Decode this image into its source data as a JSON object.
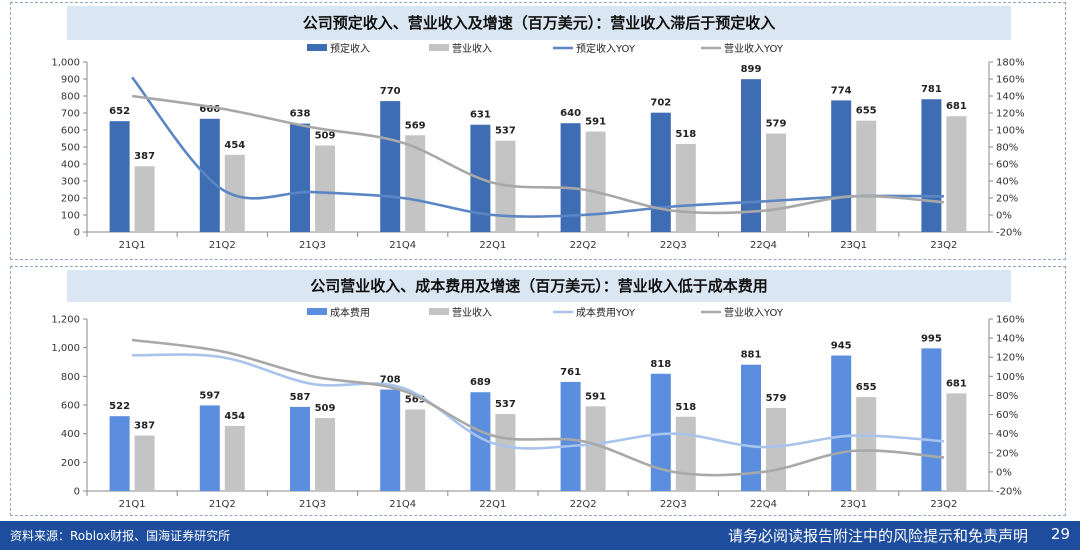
{
  "chart_data": [
    {
      "type": "bar",
      "title": "公司预定收入、营业收入及增速（百万美元）：营业收入滞后于预定收入",
      "categories": [
        "21Q1",
        "21Q2",
        "21Q3",
        "21Q4",
        "22Q1",
        "22Q2",
        "22Q3",
        "22Q4",
        "23Q1",
        "23Q2"
      ],
      "series": [
        {
          "name": "预定收入",
          "kind": "bar",
          "axis": "left",
          "color": "#3f6db3",
          "values": [
            652,
            666,
            638,
            770,
            631,
            640,
            702,
            899,
            774,
            781
          ]
        },
        {
          "name": "营业收入",
          "kind": "bar",
          "axis": "left",
          "color": "#c4c4c4",
          "values": [
            387,
            454,
            509,
            569,
            537,
            591,
            518,
            579,
            655,
            681
          ]
        },
        {
          "name": "预定收入YOY",
          "kind": "line",
          "axis": "right",
          "color": "#5b86c4",
          "values": [
            162,
            30,
            27,
            20,
            0,
            0,
            10,
            16,
            22,
            22
          ]
        },
        {
          "name": "营业收入YOY",
          "kind": "line",
          "axis": "right",
          "color": "#a8a8a8",
          "values": [
            140,
            125,
            103,
            85,
            38,
            30,
            5,
            5,
            22,
            15
          ]
        }
      ],
      "ylim": [
        0,
        1000
      ],
      "yticks": [
        "0",
        "100",
        "200",
        "300",
        "400",
        "500",
        "600",
        "700",
        "800",
        "900",
        "1,000"
      ],
      "y2lim": [
        -20,
        180
      ],
      "y2ticks": [
        "-20%",
        "0%",
        "20%",
        "40%",
        "60%",
        "80%",
        "100%",
        "120%",
        "140%",
        "160%",
        "180%"
      ],
      "legend": "top"
    },
    {
      "type": "bar",
      "title": "公司营业收入、成本费用及增速（百万美元）：营业收入低于成本费用",
      "categories": [
        "21Q1",
        "21Q2",
        "21Q3",
        "21Q4",
        "22Q1",
        "22Q2",
        "22Q3",
        "22Q4",
        "23Q1",
        "23Q2"
      ],
      "series": [
        {
          "name": "成本费用",
          "kind": "bar",
          "axis": "left",
          "color": "#5b8ede",
          "values": [
            522,
            597,
            587,
            708,
            689,
            761,
            818,
            881,
            945,
            995
          ]
        },
        {
          "name": "营业收入",
          "kind": "bar",
          "axis": "left",
          "color": "#c4c4c4",
          "values": [
            387,
            454,
            509,
            569,
            537,
            591,
            518,
            579,
            655,
            681
          ]
        },
        {
          "name": "成本费用YOY",
          "kind": "line",
          "axis": "right",
          "color": "#a9c4ec",
          "values": [
            122,
            120,
            92,
            88,
            30,
            28,
            40,
            26,
            38,
            32
          ]
        },
        {
          "name": "营业收入YOY",
          "kind": "line",
          "axis": "right",
          "color": "#a8a8a8",
          "values": [
            138,
            126,
            100,
            85,
            38,
            32,
            0,
            0,
            22,
            15
          ]
        }
      ],
      "ylim": [
        0,
        1200
      ],
      "yticks": [
        "0",
        "200",
        "400",
        "600",
        "800",
        "1,000",
        "1,200"
      ],
      "y2lim": [
        -20,
        160
      ],
      "y2ticks": [
        "-20%",
        "0%",
        "20%",
        "40%",
        "60%",
        "80%",
        "100%",
        "120%",
        "140%",
        "160%"
      ],
      "legend": "top"
    }
  ],
  "footer": {
    "source": "资料来源：Roblox财报、国海证券研究所",
    "disclaimer": "请务必阅读报告附注中的风险提示和免责声明",
    "page": "29"
  }
}
